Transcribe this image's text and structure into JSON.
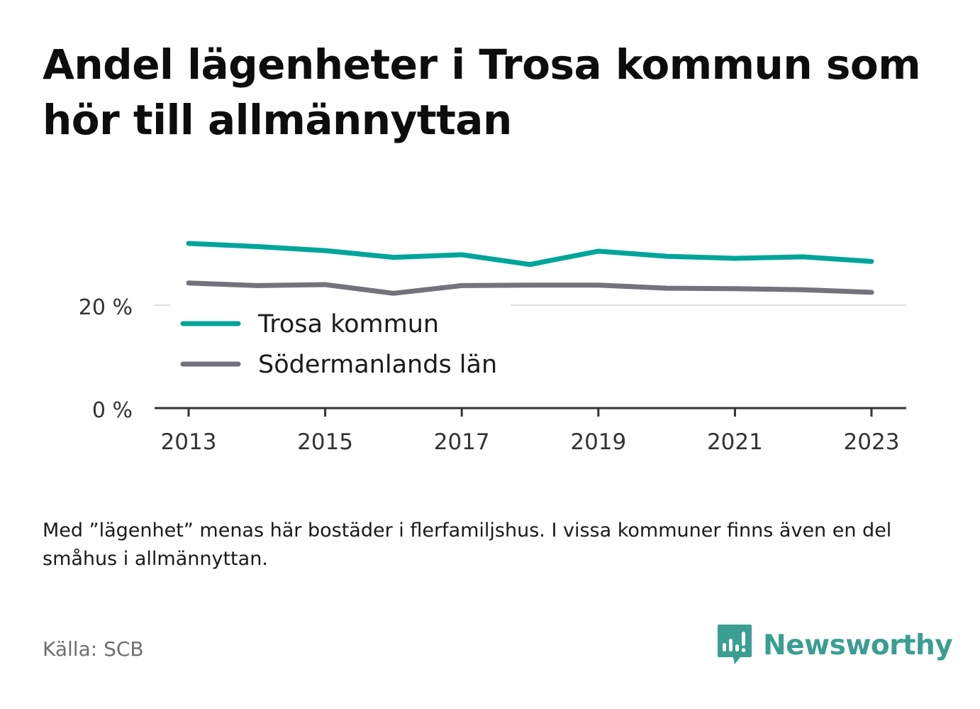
{
  "title": "Andel lägenheter i Trosa kommun som hör till allmännyttan",
  "note": "Med ”lägenhet” menas här bostäder i flerfamiljshus. I vissa kommuner finns även en del småhus i allmännyttan.",
  "source": "Källa: SCB",
  "brand": {
    "name": "Newsworthy",
    "icon": "newsworthy-logo-icon",
    "color": "#3a9e92"
  },
  "chart_data": {
    "type": "line",
    "x": [
      2013,
      2014,
      2015,
      2016,
      2017,
      2018,
      2019,
      2020,
      2021,
      2022,
      2023
    ],
    "x_ticks": [
      "2013",
      "2015",
      "2017",
      "2019",
      "2021",
      "2023"
    ],
    "y_ticks": [
      "0 %",
      "20 %"
    ],
    "ylim": [
      0,
      32
    ],
    "grid": true,
    "legend_position": "inside-left",
    "series": [
      {
        "name": "Trosa kommun",
        "color": "#00a59a",
        "values": [
          32.0,
          31.4,
          30.6,
          29.3,
          29.8,
          27.9,
          30.5,
          29.5,
          29.1,
          29.4,
          28.5
        ]
      },
      {
        "name": "Södermanlands län",
        "color": "#73737b",
        "values": [
          24.3,
          23.8,
          24.0,
          22.3,
          23.8,
          23.9,
          23.9,
          23.3,
          23.2,
          23.0,
          22.5
        ]
      }
    ]
  }
}
